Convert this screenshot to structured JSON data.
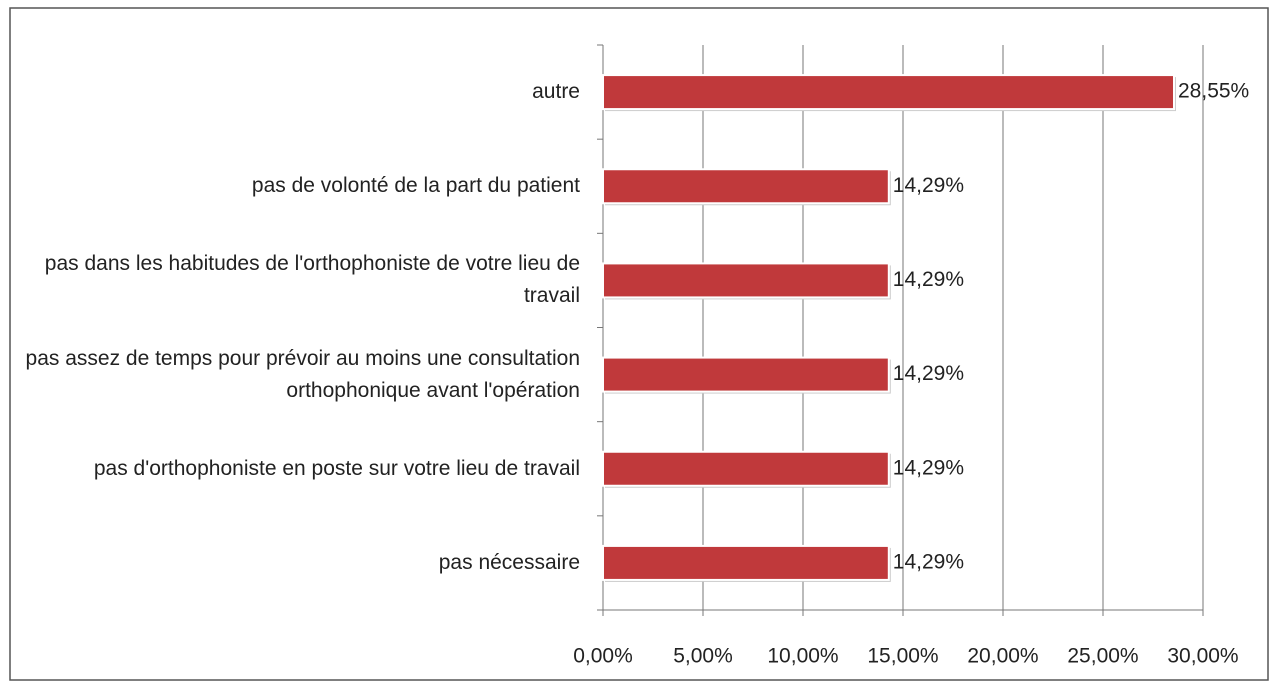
{
  "chart_data": {
    "type": "bar",
    "orientation": "horizontal",
    "categories": [
      "autre",
      "pas de volonté de la part du patient",
      "pas dans les habitudes de l'orthophoniste de votre lieu de travail",
      "pas assez de temps pour prévoir au moins une consultation orthophonique avant l'opération",
      "pas d'orthophoniste en poste sur votre lieu de travail",
      "pas nécessaire"
    ],
    "values": [
      28.55,
      14.29,
      14.29,
      14.29,
      14.29,
      14.29
    ],
    "value_labels": [
      "28,55%",
      "14,29%",
      "14,29%",
      "14,29%",
      "14,29%",
      "14,29%"
    ],
    "color": "#c0393b",
    "xlim": [
      0,
      30
    ],
    "xticks": [
      {
        "value": 0,
        "label": "0,00%"
      },
      {
        "value": 5,
        "label": "5,00%"
      },
      {
        "value": 10,
        "label": "10,00%"
      },
      {
        "value": 15,
        "label": "15,00%"
      },
      {
        "value": 20,
        "label": "20,00%"
      },
      {
        "value": 25,
        "label": "25,00%"
      },
      {
        "value": 30,
        "label": "30,00%"
      }
    ],
    "grid": true
  }
}
